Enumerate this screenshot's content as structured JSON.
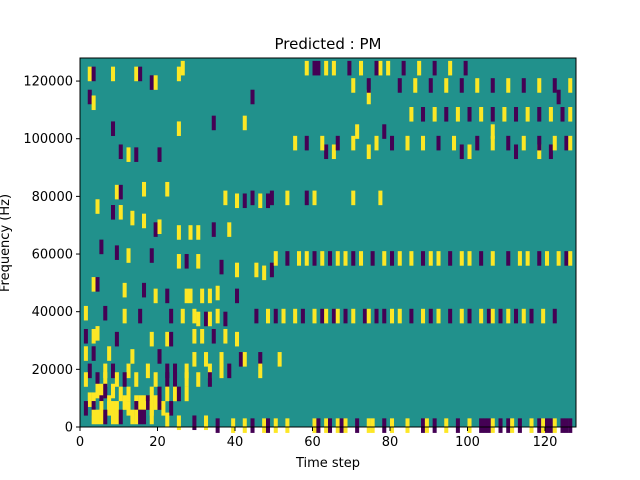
{
  "chart_data": {
    "type": "heatmap",
    "title": "Predicted : PM",
    "xlabel": "Time step",
    "ylabel": "Frequency (Hz)",
    "xlim": [
      0,
      128
    ],
    "ylim": [
      0,
      128000
    ],
    "xticks": [
      0,
      20,
      40,
      60,
      80,
      100,
      120
    ],
    "yticks": [
      0,
      20000,
      40000,
      60000,
      80000,
      100000,
      120000
    ],
    "n_time_steps": 128,
    "n_freq_bins": 128,
    "colors": {
      "background": "#21918c",
      "high": "#fde725",
      "low": "#440154"
    },
    "background_value": 0,
    "cells": [
      [
        2,
        124,
        1
      ],
      [
        3,
        124,
        -1
      ],
      [
        8,
        124,
        1
      ],
      [
        14,
        124,
        1
      ],
      [
        15,
        124,
        -1
      ],
      [
        25,
        124,
        1
      ],
      [
        18,
        121,
        -1
      ],
      [
        19,
        121,
        1
      ],
      [
        26,
        126,
        1
      ],
      [
        60,
        126,
        -1
      ],
      [
        63,
        126,
        1
      ],
      [
        77,
        126,
        1
      ],
      [
        2,
        116,
        -1
      ],
      [
        3,
        114,
        1
      ],
      [
        44,
        116,
        -1
      ],
      [
        74,
        116,
        1
      ],
      [
        123,
        116,
        -1
      ],
      [
        8,
        105,
        -1
      ],
      [
        25,
        105,
        1
      ],
      [
        34,
        107,
        -1
      ],
      [
        42,
        107,
        1
      ],
      [
        71,
        104,
        1
      ],
      [
        78,
        104,
        -1
      ],
      [
        106,
        104,
        1
      ],
      [
        10,
        97,
        -1
      ],
      [
        12,
        96,
        1
      ],
      [
        14,
        96,
        -1
      ],
      [
        20,
        96,
        -1
      ],
      [
        63,
        97,
        -1
      ],
      [
        65,
        97,
        1
      ],
      [
        74,
        97,
        1
      ],
      [
        98,
        97,
        -1
      ],
      [
        100,
        97,
        1
      ],
      [
        112,
        97,
        -1
      ],
      [
        118,
        97,
        1
      ],
      [
        121,
        97,
        -1
      ],
      [
        9,
        83,
        1
      ],
      [
        10,
        83,
        -1
      ],
      [
        16,
        84,
        1
      ],
      [
        22,
        84,
        1
      ],
      [
        37,
        81,
        1
      ],
      [
        44,
        81,
        -1
      ],
      [
        49,
        81,
        -1
      ],
      [
        53,
        81,
        1
      ],
      [
        58,
        81,
        -1
      ],
      [
        60,
        81,
        1
      ],
      [
        70,
        81,
        1
      ],
      [
        77,
        81,
        1
      ],
      [
        4,
        78,
        1
      ],
      [
        8,
        76,
        -1
      ],
      [
        10,
        76,
        1
      ],
      [
        13,
        74,
        1
      ],
      [
        16,
        73,
        1
      ],
      [
        19,
        70,
        -1
      ],
      [
        20,
        71,
        1
      ],
      [
        25,
        69,
        1
      ],
      [
        28,
        69,
        1
      ],
      [
        30,
        69,
        1
      ],
      [
        34,
        70,
        -1
      ],
      [
        38,
        70,
        1
      ],
      [
        5,
        64,
        -1
      ],
      [
        9,
        62,
        -1
      ],
      [
        12,
        61,
        1
      ],
      [
        18,
        61,
        -1
      ],
      [
        25,
        59,
        1
      ],
      [
        27,
        59,
        -1
      ],
      [
        30,
        59,
        1
      ],
      [
        36,
        57,
        -1
      ],
      [
        40,
        56,
        1
      ],
      [
        45,
        56,
        1
      ],
      [
        47,
        55,
        1
      ],
      [
        49,
        56,
        -1
      ],
      [
        3,
        51,
        1
      ],
      [
        4,
        51,
        -1
      ],
      [
        11,
        49,
        1
      ],
      [
        16,
        49,
        -1
      ],
      [
        19,
        47,
        1
      ],
      [
        22,
        47,
        -1
      ],
      [
        27,
        47,
        1
      ],
      [
        28,
        47,
        1
      ],
      [
        31,
        47,
        1
      ],
      [
        33,
        47,
        1
      ],
      [
        35,
        48,
        1
      ],
      [
        40,
        47,
        -1
      ],
      [
        1,
        41,
        1
      ],
      [
        6,
        41,
        -1
      ],
      [
        11,
        40,
        1
      ],
      [
        15,
        40,
        -1
      ],
      [
        23,
        40,
        -1
      ],
      [
        26,
        40,
        1
      ],
      [
        29,
        40,
        1
      ],
      [
        30,
        39,
        1
      ],
      [
        32,
        39,
        -1
      ],
      [
        33,
        39,
        1
      ],
      [
        35,
        40,
        1
      ],
      [
        37,
        39,
        -1
      ],
      [
        1,
        33,
        -1
      ],
      [
        3,
        33,
        1
      ],
      [
        4,
        34,
        1
      ],
      [
        9,
        32,
        -1
      ],
      [
        18,
        32,
        1
      ],
      [
        22,
        32,
        1
      ],
      [
        23,
        32,
        -1
      ],
      [
        29,
        33,
        1
      ],
      [
        31,
        33,
        1
      ],
      [
        34,
        33,
        -1
      ],
      [
        37,
        33,
        1
      ],
      [
        40,
        32,
        1
      ],
      [
        1,
        27,
        1
      ],
      [
        3,
        27,
        -1
      ],
      [
        7,
        27,
        1
      ],
      [
        13,
        26,
        1
      ],
      [
        20,
        26,
        -1
      ],
      [
        29,
        25,
        1
      ],
      [
        32,
        25,
        1
      ],
      [
        36,
        25,
        1
      ],
      [
        41,
        25,
        -1
      ],
      [
        42,
        25,
        1
      ],
      [
        46,
        25,
        -1
      ],
      [
        51,
        25,
        1
      ],
      [
        2,
        21,
        -1
      ],
      [
        6,
        21,
        1
      ],
      [
        8,
        21,
        -1
      ],
      [
        12,
        21,
        1
      ],
      [
        17,
        21,
        1
      ],
      [
        22,
        21,
        -1
      ],
      [
        24,
        21,
        -1
      ],
      [
        27,
        21,
        1
      ],
      [
        33,
        21,
        1
      ],
      [
        36,
        21,
        1
      ],
      [
        38,
        21,
        -1
      ],
      [
        46,
        21,
        1
      ],
      [
        1,
        18,
        1
      ],
      [
        4,
        18,
        -1
      ],
      [
        6,
        18,
        1
      ],
      [
        9,
        18,
        1
      ],
      [
        11,
        18,
        -1
      ],
      [
        14,
        18,
        1
      ],
      [
        19,
        18,
        1
      ],
      [
        22,
        18,
        -1
      ],
      [
        24,
        18,
        -1
      ],
      [
        27,
        18,
        1
      ],
      [
        30,
        18,
        1
      ],
      [
        33,
        18,
        -1
      ],
      [
        4,
        14,
        1
      ],
      [
        5,
        14,
        1
      ],
      [
        6,
        14,
        -1
      ],
      [
        8,
        14,
        1
      ],
      [
        10,
        13,
        1
      ],
      [
        12,
        13,
        1
      ],
      [
        18,
        13,
        1
      ],
      [
        20,
        13,
        -1
      ],
      [
        22,
        13,
        1
      ],
      [
        24,
        13,
        1
      ],
      [
        25,
        13,
        -1
      ],
      [
        27,
        13,
        1
      ],
      [
        2,
        11,
        1
      ],
      [
        3,
        11,
        1
      ],
      [
        5,
        10,
        -1
      ],
      [
        7,
        10,
        1
      ],
      [
        11,
        10,
        1
      ],
      [
        14,
        10,
        1
      ],
      [
        15,
        10,
        1
      ],
      [
        16,
        10,
        1
      ],
      [
        17,
        10,
        -1
      ],
      [
        18,
        10,
        1
      ],
      [
        19,
        10,
        1
      ],
      [
        20,
        10,
        -1
      ],
      [
        1,
        8,
        -1
      ],
      [
        3,
        8,
        -1
      ],
      [
        5,
        8,
        1
      ],
      [
        7,
        8,
        1
      ],
      [
        8,
        8,
        1
      ],
      [
        9,
        8,
        1
      ],
      [
        12,
        8,
        1
      ],
      [
        14,
        8,
        -1
      ],
      [
        16,
        8,
        1
      ],
      [
        18,
        8,
        1
      ],
      [
        21,
        8,
        1
      ],
      [
        23,
        8,
        -1
      ],
      [
        3,
        5,
        1
      ],
      [
        4,
        5,
        1
      ],
      [
        5,
        5,
        1
      ],
      [
        6,
        5,
        -1
      ],
      [
        8,
        5,
        1
      ],
      [
        9,
        5,
        1
      ],
      [
        10,
        5,
        -1
      ],
      [
        13,
        5,
        1
      ],
      [
        14,
        5,
        1
      ],
      [
        15,
        5,
        -1
      ],
      [
        16,
        5,
        -1
      ],
      [
        18,
        5,
        1
      ],
      [
        22,
        4,
        1
      ],
      [
        25,
        3,
        1
      ],
      [
        29,
        3,
        -1
      ],
      [
        32,
        3,
        1
      ],
      [
        35,
        2,
        -1
      ],
      [
        39,
        2,
        1
      ],
      [
        42,
        2,
        1
      ],
      [
        44,
        2,
        -1
      ],
      [
        47,
        2,
        1
      ],
      [
        48,
        2,
        -1
      ],
      [
        50,
        2,
        1
      ],
      [
        53,
        2,
        1
      ],
      [
        60,
        2,
        1
      ],
      [
        61,
        2,
        -1
      ],
      [
        63,
        2,
        1
      ],
      [
        64,
        2,
        -1
      ],
      [
        66,
        2,
        1
      ],
      [
        67,
        2,
        -1
      ],
      [
        68,
        2,
        1
      ],
      [
        71,
        2,
        -1
      ],
      [
        74,
        2,
        1
      ],
      [
        75,
        2,
        1
      ],
      [
        78,
        2,
        -1
      ],
      [
        80,
        2,
        1
      ],
      [
        84,
        2,
        1
      ],
      [
        88,
        2,
        -1
      ],
      [
        89,
        2,
        1
      ],
      [
        91,
        2,
        -1
      ],
      [
        94,
        2,
        1
      ],
      [
        97,
        2,
        -1
      ],
      [
        100,
        2,
        1
      ],
      [
        103,
        2,
        -1
      ],
      [
        104,
        2,
        -1
      ],
      [
        105,
        2,
        -1
      ],
      [
        106,
        2,
        1
      ],
      [
        108,
        2,
        -1
      ],
      [
        110,
        2,
        -1
      ],
      [
        111,
        2,
        1
      ],
      [
        113,
        2,
        -1
      ],
      [
        116,
        2,
        1
      ],
      [
        118,
        2,
        -1
      ],
      [
        119,
        2,
        1
      ],
      [
        120,
        2,
        -1
      ],
      [
        121,
        2,
        -1
      ],
      [
        122,
        2,
        1
      ],
      [
        124,
        2,
        -1
      ],
      [
        125,
        2,
        -1
      ],
      [
        126,
        2,
        -1
      ],
      [
        45,
        40,
        -1
      ],
      [
        48,
        40,
        1
      ],
      [
        50,
        40,
        -1
      ],
      [
        52,
        40,
        1
      ],
      [
        55,
        40,
        1
      ],
      [
        57,
        40,
        -1
      ],
      [
        60,
        40,
        1
      ],
      [
        62,
        40,
        -1
      ],
      [
        63,
        40,
        1
      ],
      [
        65,
        40,
        -1
      ],
      [
        66,
        40,
        1
      ],
      [
        68,
        40,
        -1
      ],
      [
        70,
        40,
        1
      ],
      [
        73,
        40,
        -1
      ],
      [
        74,
        40,
        1
      ],
      [
        76,
        40,
        -1
      ],
      [
        78,
        40,
        -1
      ],
      [
        80,
        40,
        1
      ],
      [
        82,
        40,
        1
      ],
      [
        85,
        40,
        -1
      ],
      [
        88,
        40,
        1
      ],
      [
        90,
        40,
        -1
      ],
      [
        92,
        40,
        1
      ],
      [
        95,
        40,
        -1
      ],
      [
        98,
        40,
        1
      ],
      [
        100,
        40,
        -1
      ],
      [
        103,
        40,
        1
      ],
      [
        105,
        40,
        -1
      ],
      [
        106,
        40,
        1
      ],
      [
        108,
        40,
        -1
      ],
      [
        110,
        40,
        1
      ],
      [
        112,
        40,
        -1
      ],
      [
        114,
        40,
        1
      ],
      [
        116,
        40,
        -1
      ],
      [
        119,
        40,
        1
      ],
      [
        122,
        40,
        -1
      ],
      [
        50,
        60,
        1
      ],
      [
        53,
        60,
        -1
      ],
      [
        56,
        60,
        1
      ],
      [
        58,
        60,
        1
      ],
      [
        60,
        60,
        -1
      ],
      [
        62,
        60,
        1
      ],
      [
        64,
        60,
        -1
      ],
      [
        66,
        60,
        1
      ],
      [
        68,
        60,
        1
      ],
      [
        70,
        60,
        -1
      ],
      [
        72,
        60,
        1
      ],
      [
        75,
        60,
        -1
      ],
      [
        78,
        60,
        1
      ],
      [
        80,
        60,
        -1
      ],
      [
        82,
        60,
        1
      ],
      [
        85,
        60,
        1
      ],
      [
        88,
        60,
        -1
      ],
      [
        90,
        60,
        1
      ],
      [
        92,
        60,
        1
      ],
      [
        95,
        60,
        -1
      ],
      [
        98,
        60,
        1
      ],
      [
        100,
        60,
        1
      ],
      [
        103,
        60,
        -1
      ],
      [
        106,
        60,
        1
      ],
      [
        110,
        60,
        -1
      ],
      [
        113,
        60,
        1
      ],
      [
        115,
        60,
        1
      ],
      [
        118,
        60,
        -1
      ],
      [
        120,
        60,
        1
      ],
      [
        123,
        60,
        1
      ],
      [
        125,
        60,
        -1
      ],
      [
        126,
        60,
        1
      ],
      [
        40,
        80,
        1
      ],
      [
        42,
        80,
        -1
      ],
      [
        46,
        80,
        1
      ],
      [
        48,
        80,
        -1
      ],
      [
        55,
        100,
        1
      ],
      [
        58,
        100,
        -1
      ],
      [
        62,
        100,
        1
      ],
      [
        66,
        100,
        -1
      ],
      [
        70,
        100,
        1
      ],
      [
        76,
        100,
        1
      ],
      [
        80,
        100,
        -1
      ],
      [
        84,
        100,
        1
      ],
      [
        88,
        100,
        1
      ],
      [
        92,
        100,
        -1
      ],
      [
        96,
        100,
        1
      ],
      [
        102,
        100,
        -1
      ],
      [
        106,
        100,
        1
      ],
      [
        110,
        100,
        -1
      ],
      [
        114,
        100,
        1
      ],
      [
        118,
        100,
        -1
      ],
      [
        122,
        100,
        1
      ],
      [
        125,
        100,
        -1
      ],
      [
        126,
        100,
        1
      ],
      [
        85,
        110,
        1
      ],
      [
        88,
        110,
        -1
      ],
      [
        91,
        110,
        1
      ],
      [
        94,
        110,
        -1
      ],
      [
        97,
        110,
        1
      ],
      [
        100,
        110,
        -1
      ],
      [
        103,
        110,
        1
      ],
      [
        106,
        110,
        -1
      ],
      [
        109,
        110,
        1
      ],
      [
        112,
        110,
        -1
      ],
      [
        115,
        110,
        1
      ],
      [
        118,
        110,
        -1
      ],
      [
        121,
        110,
        1
      ],
      [
        124,
        110,
        -1
      ],
      [
        126,
        110,
        1
      ],
      [
        82,
        120,
        -1
      ],
      [
        86,
        120,
        1
      ],
      [
        90,
        120,
        -1
      ],
      [
        94,
        120,
        1
      ],
      [
        98,
        120,
        -1
      ],
      [
        102,
        120,
        1
      ],
      [
        106,
        120,
        -1
      ],
      [
        110,
        120,
        1
      ],
      [
        114,
        120,
        -1
      ],
      [
        118,
        120,
        1
      ],
      [
        122,
        120,
        -1
      ],
      [
        126,
        120,
        1
      ],
      [
        70,
        120,
        1
      ],
      [
        74,
        120,
        -1
      ],
      [
        58,
        126,
        1
      ],
      [
        61,
        126,
        -1
      ],
      [
        65,
        126,
        1
      ],
      [
        69,
        126,
        -1
      ],
      [
        72,
        126,
        1
      ],
      [
        76,
        126,
        -1
      ],
      [
        79,
        126,
        1
      ],
      [
        83,
        126,
        -1
      ],
      [
        87,
        126,
        1
      ],
      [
        91,
        126,
        -1
      ],
      [
        95,
        126,
        1
      ],
      [
        99,
        126,
        -1
      ]
    ]
  }
}
